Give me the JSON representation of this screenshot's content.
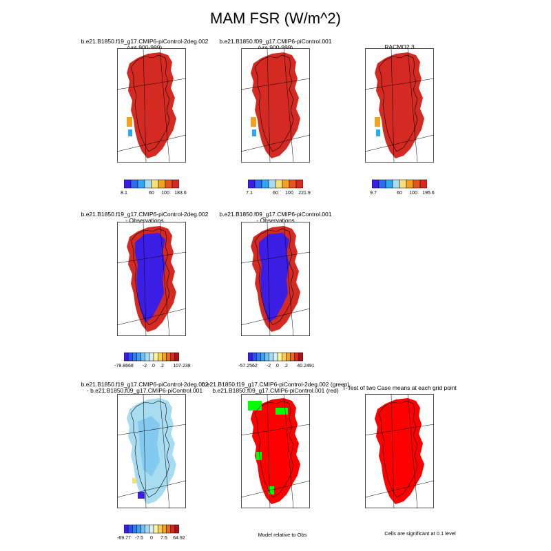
{
  "title": "MAM FSR (W/m^2)",
  "panels": [
    {
      "line1": "b.e21.B1850.f19_g17.CMIP6-piControl-2deg.002",
      "line2": "(yrs 900-999)",
      "fill": "high"
    },
    {
      "line1": "b.e21.B1850.f09_g17.CMIP6-piControl.001",
      "line2": "(yrs 900-999)",
      "fill": "high"
    },
    {
      "line1": "RACMO2.3",
      "line2": "",
      "fill": "high"
    },
    {
      "line1": "b.e21.B1850.f19_g17.CMIP6-piControl-2deg.002",
      "line2": "- Observations",
      "fill": "diff"
    },
    {
      "line1": "b.e21.B1850.f09_g17.CMIP6-piControl.001",
      "line2": "- Observations",
      "fill": "diff"
    },
    {
      "line1": "b.e21.B1850.f19_g17.CMIP6-piControl-2deg.002",
      "line2": "- b.e21.B1850.f09_g17.CMIP6-piControl.001",
      "fill": "small"
    },
    {
      "line1": "b.e21.B1850.f19_g17.CMIP6-piControl-2deg.002 (green)",
      "line2": "b.e21.B1850.f09_g17.CMIP6-piControl.001 (red)",
      "fill": "redgreen"
    },
    {
      "line1": "T-Test of two Case means at each grid point",
      "line2": "",
      "fill": "ttest"
    }
  ],
  "colorbars": [
    {
      "labels": [
        "8.1",
        "60",
        "100",
        "183.6"
      ],
      "colors": [
        "#3a1ee6",
        "#2f6cf0",
        "#2fa8f2",
        "#a8dcf0",
        "#f7e07a",
        "#f2a21e",
        "#e8541e",
        "#d42a22"
      ]
    },
    {
      "labels": [
        "7.1",
        "60",
        "100",
        "221.9"
      ],
      "colors": [
        "#3a1ee6",
        "#2f6cf0",
        "#2fa8f2",
        "#a8dcf0",
        "#f7e07a",
        "#f2a21e",
        "#e8541e",
        "#d42a22"
      ]
    },
    {
      "labels": [
        "9.7",
        "60",
        "100",
        "195.6"
      ],
      "colors": [
        "#3a1ee6",
        "#2f6cf0",
        "#2fa8f2",
        "#a8dcf0",
        "#f7e07a",
        "#f2a21e",
        "#e8541e",
        "#d42a22"
      ]
    },
    {
      "labels": [
        "-79.8668",
        "-2",
        ".0",
        ".2",
        "107.238"
      ],
      "colors": [
        "#3a1ee6",
        "#2f4ef0",
        "#2f7cf0",
        "#3aa0f2",
        "#6ec0f2",
        "#a8dcf0",
        "#d6eef6",
        "#fff3a0",
        "#f7d04a",
        "#f2a21e",
        "#e86a1e",
        "#d42a22",
        "#a8141e"
      ]
    },
    {
      "labels": [
        "-57.2562",
        "-2",
        ".0",
        ".2",
        "40.2491"
      ],
      "colors": [
        "#3a1ee6",
        "#2f4ef0",
        "#2f7cf0",
        "#3aa0f2",
        "#6ec0f2",
        "#a8dcf0",
        "#d6eef6",
        "#fff3a0",
        "#f7d04a",
        "#f2a21e",
        "#e86a1e",
        "#d42a22",
        "#a8141e"
      ]
    },
    {
      "labels": [
        "-69.77",
        "-7.5",
        "0",
        "7.5",
        "64.92"
      ],
      "colors": [
        "#3a1ee6",
        "#2f4ef0",
        "#2f7cf0",
        "#3aa0f2",
        "#6ec0f2",
        "#a8dcf0",
        "#d6eef6",
        "#fff3a0",
        "#f7d04a",
        "#f2a21e",
        "#e86a1e",
        "#d42a22",
        "#a8141e"
      ]
    }
  ],
  "notes": {
    "model_relative": "Model relative to Obs",
    "significance": "Cells are significant at 0.1 level"
  },
  "colors": {
    "high": "#d42a22",
    "diff_low": "#3a1ee6",
    "small": "#a8dcf0",
    "red": "#ff0000",
    "green": "#00ff00"
  }
}
